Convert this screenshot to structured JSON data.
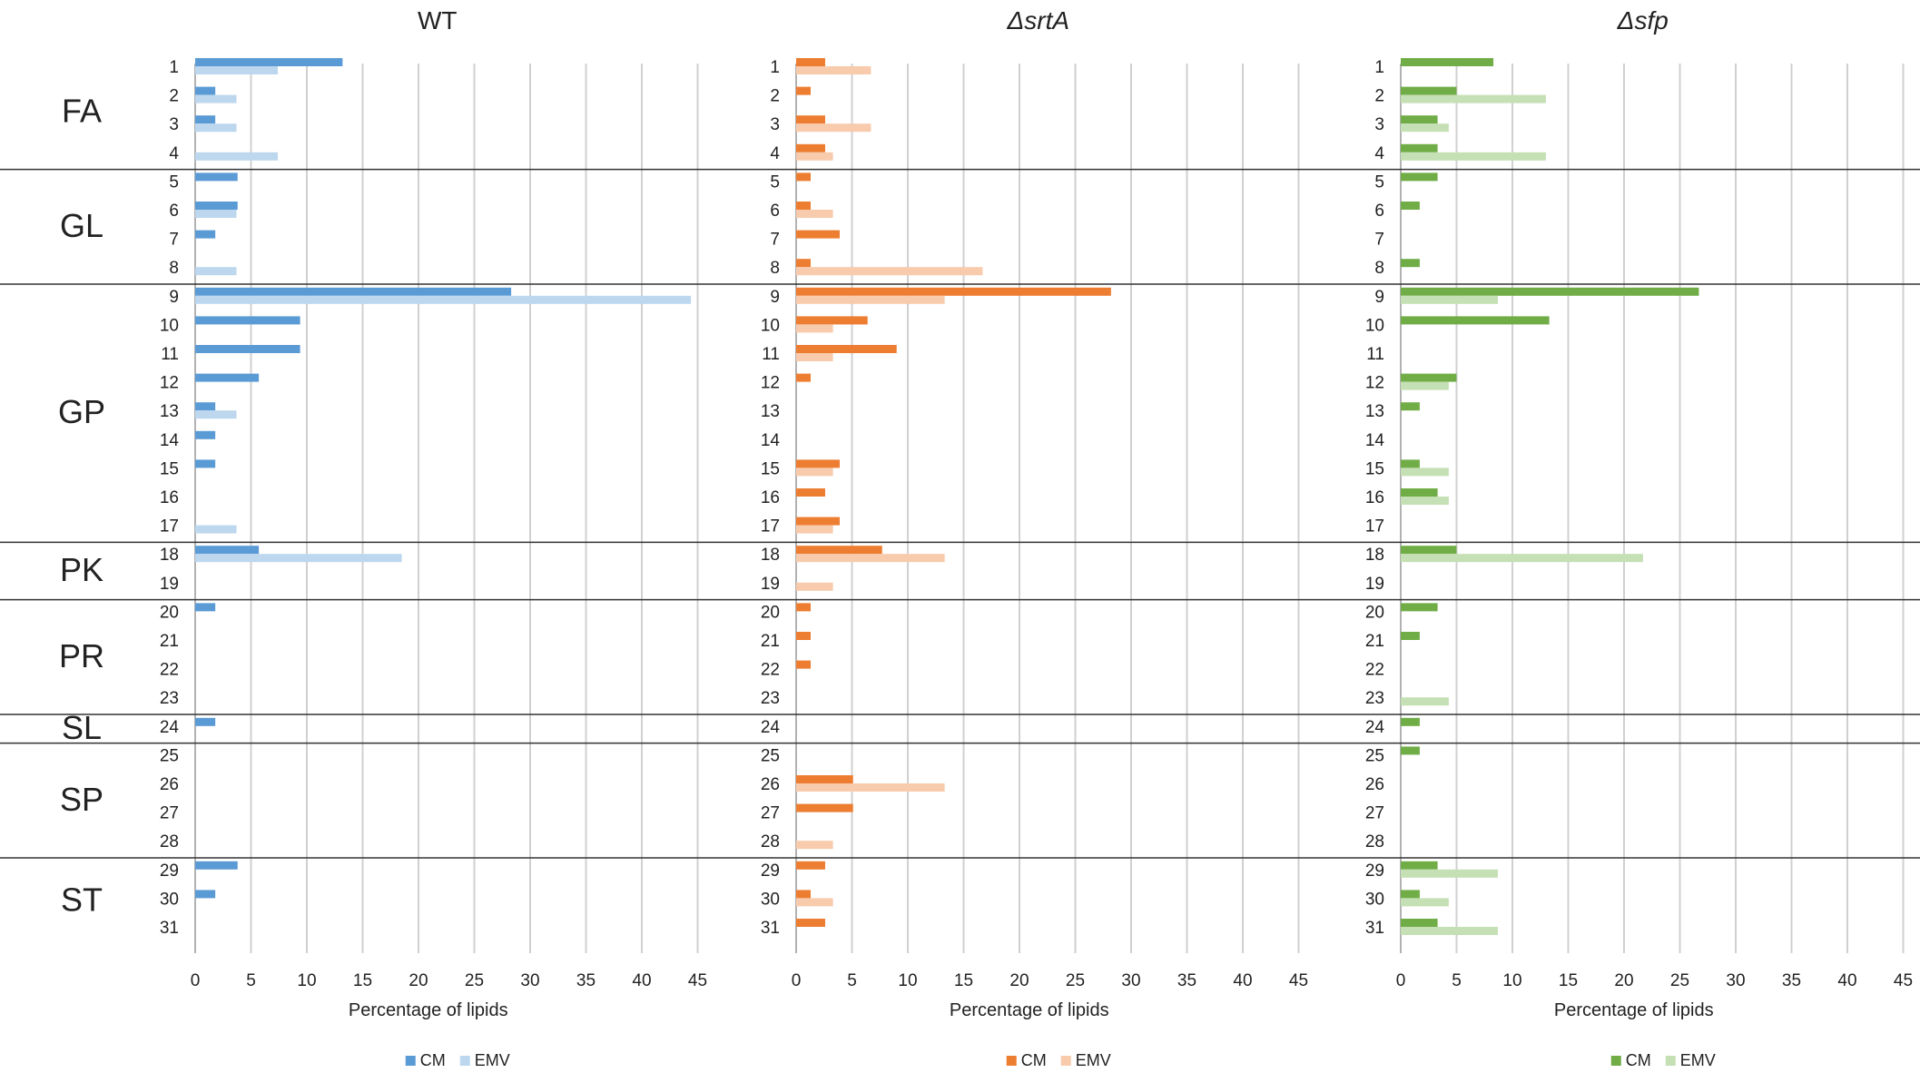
{
  "chart_data": {
    "type": "bar",
    "orientation": "horizontal",
    "groups": [
      {
        "label": "FA",
        "rows": [
          1,
          2,
          3,
          4
        ]
      },
      {
        "label": "GL",
        "rows": [
          5,
          6,
          7,
          8
        ]
      },
      {
        "label": "GP",
        "rows": [
          9,
          10,
          11,
          12,
          13,
          14,
          15,
          16,
          17
        ]
      },
      {
        "label": "PK",
        "rows": [
          18,
          19
        ]
      },
      {
        "label": "PR",
        "rows": [
          20,
          21,
          22,
          23
        ]
      },
      {
        "label": "SL",
        "rows": [
          24
        ]
      },
      {
        "label": "SP",
        "rows": [
          25,
          26,
          27,
          28
        ]
      },
      {
        "label": "ST",
        "rows": [
          29,
          30,
          31
        ]
      }
    ],
    "categories": [
      "1",
      "2",
      "3",
      "4",
      "5",
      "6",
      "7",
      "8",
      "9",
      "10",
      "11",
      "12",
      "13",
      "14",
      "15",
      "16",
      "17",
      "18",
      "19",
      "20",
      "21",
      "22",
      "23",
      "24",
      "25",
      "26",
      "27",
      "28",
      "29",
      "30",
      "31"
    ],
    "xlim": [
      0,
      45
    ],
    "xticks": [
      0,
      5,
      10,
      15,
      20,
      25,
      30,
      35,
      40,
      45
    ],
    "panels": [
      {
        "title": "WT",
        "italic": false,
        "xlabel": "Percentage of lipids",
        "legend": [
          "CM",
          "EMV"
        ],
        "colors": {
          "CM": "#5b9bd5",
          "EMV": "#bdd7ee"
        },
        "series": [
          {
            "name": "CM",
            "values": [
              13.2,
              1.8,
              1.8,
              0,
              3.8,
              3.8,
              1.8,
              0,
              28.3,
              9.4,
              9.4,
              5.7,
              1.8,
              1.8,
              1.8,
              0,
              0,
              5.7,
              0,
              1.8,
              0,
              0,
              0,
              1.8,
              0,
              0,
              0,
              0,
              3.8,
              1.8,
              0
            ]
          },
          {
            "name": "EMV",
            "values": [
              7.4,
              3.7,
              3.7,
              7.4,
              0,
              3.7,
              0,
              3.7,
              44.4,
              0,
              0,
              0,
              3.7,
              0,
              0,
              0,
              3.7,
              18.5,
              0,
              0,
              0,
              0,
              0,
              0,
              0,
              0,
              0,
              0,
              0,
              0,
              0
            ]
          }
        ]
      },
      {
        "title": "ΔsrtA",
        "italic": true,
        "xlabel": "Percentage of lipids",
        "legend": [
          "CM",
          "EMV"
        ],
        "colors": {
          "CM": "#ed7d31",
          "EMV": "#f8cbad"
        },
        "series": [
          {
            "name": "CM",
            "values": [
              2.6,
              1.3,
              2.6,
              2.6,
              1.3,
              1.3,
              3.9,
              1.3,
              28.2,
              6.4,
              9.0,
              1.3,
              0,
              0,
              3.9,
              2.6,
              3.9,
              7.7,
              0,
              1.3,
              1.3,
              1.3,
              0,
              0,
              0,
              5.1,
              5.1,
              0,
              2.6,
              1.3,
              2.6
            ]
          },
          {
            "name": "EMV",
            "values": [
              6.7,
              0,
              6.7,
              3.3,
              0,
              3.3,
              0,
              16.7,
              13.3,
              3.3,
              3.3,
              0,
              0,
              0,
              3.3,
              0,
              3.3,
              13.3,
              3.3,
              0,
              0,
              0,
              0,
              0,
              0,
              13.3,
              0,
              3.3,
              0,
              3.3,
              0
            ]
          }
        ]
      },
      {
        "title": "Δsfp",
        "italic": true,
        "xlabel": "Percentage of lipids",
        "legend": [
          "CM",
          "EMV"
        ],
        "colors": {
          "CM": "#70ad47",
          "EMV": "#c5e0b4"
        },
        "series": [
          {
            "name": "CM",
            "values": [
              8.3,
              5.0,
              3.3,
              3.3,
              3.3,
              1.7,
              0,
              1.7,
              26.7,
              13.3,
              0,
              5.0,
              1.7,
              0,
              1.7,
              3.3,
              0,
              5.0,
              0,
              3.3,
              1.7,
              0,
              0,
              1.7,
              1.7,
              0,
              0,
              0,
              3.3,
              1.7,
              3.3
            ]
          },
          {
            "name": "EMV",
            "values": [
              0,
              13.0,
              4.3,
              13.0,
              0,
              0,
              0,
              0,
              8.7,
              0,
              0,
              4.3,
              0,
              0,
              4.3,
              4.3,
              0,
              21.7,
              0,
              0,
              0,
              0,
              4.3,
              0,
              0,
              0,
              0,
              0,
              8.7,
              4.3,
              8.7
            ]
          }
        ]
      }
    ]
  }
}
